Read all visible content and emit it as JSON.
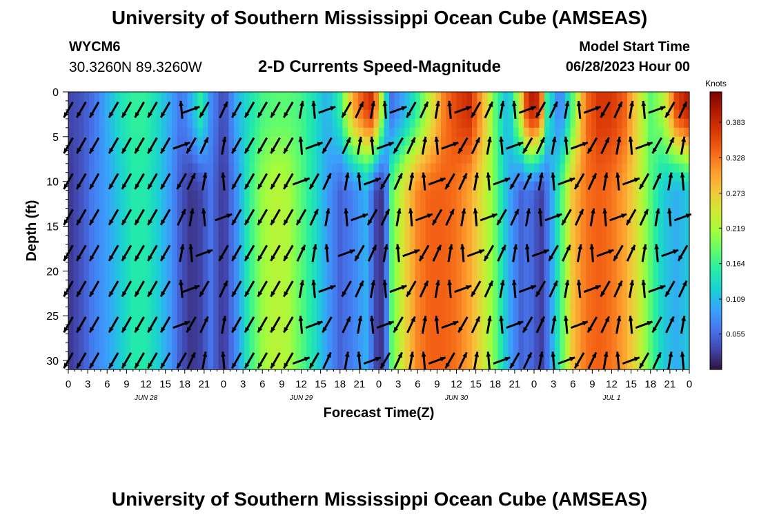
{
  "header": {
    "title": "University of Southern Mississippi Ocean Cube (AMSEAS)",
    "station_id": "WYCM6",
    "coordinates": "30.3260N  89.3260W",
    "chart_title": "2-D Currents Speed-Magnitude",
    "model_start_label": "Model Start Time",
    "model_start_value": "06/28/2023 Hour 00"
  },
  "footer": {
    "title": "University of Southern Mississippi Ocean Cube (AMSEAS)"
  },
  "chart_data": {
    "type": "heatmap",
    "title": "2-D Currents Speed-Magnitude",
    "xlabel": "Forecast Time(Z)",
    "ylabel": "Depth (ft)",
    "x_range_hours": [
      0,
      96
    ],
    "x_tick_step_hours": 3,
    "x_tick_labels": [
      "0",
      "3",
      "6",
      "9",
      "12",
      "15",
      "18",
      "21",
      "0",
      "3",
      "6",
      "9",
      "12",
      "15",
      "18",
      "21",
      "0",
      "3",
      "6",
      "9",
      "12",
      "15",
      "18",
      "21",
      "0",
      "3",
      "6",
      "9",
      "12",
      "15",
      "18",
      "21",
      "0"
    ],
    "date_labels": [
      {
        "label": "JUN 28",
        "hour": 12
      },
      {
        "label": "JUN 29",
        "hour": 36
      },
      {
        "label": "JUN 30",
        "hour": 60
      },
      {
        "label": "JUL 1",
        "hour": 84
      }
    ],
    "y_range_ft": [
      0,
      31
    ],
    "y_ticks": [
      0,
      5,
      10,
      15,
      20,
      25,
      30
    ],
    "colorbar": {
      "unit_label": "Knots",
      "min": 0.0,
      "max": 0.43,
      "ticks": [
        "0.383",
        "0.328",
        "0.273",
        "0.219",
        "0.164",
        "0.109",
        "0.055"
      ],
      "tick_values": [
        0.383,
        0.328,
        0.273,
        0.219,
        0.164,
        0.109,
        0.055
      ],
      "colors": [
        "#30123b",
        "#4145ab",
        "#4675ed",
        "#39a2fc",
        "#1bcfd4",
        "#24eca6",
        "#61fc6c",
        "#a4fc3b",
        "#d1e834",
        "#f3c63a",
        "#fe9b2d",
        "#f36315",
        "#d93806",
        "#b11901",
        "#7a0402"
      ]
    },
    "speed_profile": {
      "hours": [
        0,
        2,
        4,
        6,
        8,
        10,
        12,
        14,
        16,
        17.5,
        19,
        20.5,
        22,
        24,
        26,
        28,
        30,
        32,
        34,
        36,
        38,
        40,
        42,
        44,
        46,
        47,
        48,
        49,
        50,
        52,
        54,
        56,
        58,
        60,
        62,
        64,
        66,
        68,
        70,
        71,
        72,
        73,
        74,
        76,
        78,
        80,
        82,
        84,
        86,
        88,
        90,
        92,
        94,
        96
      ],
      "surface": [
        0.03,
        0.04,
        0.06,
        0.1,
        0.14,
        0.16,
        0.16,
        0.13,
        0.09,
        0.06,
        0.1,
        0.16,
        0.08,
        0.03,
        0.1,
        0.14,
        0.17,
        0.18,
        0.18,
        0.17,
        0.14,
        0.1,
        0.16,
        0.3,
        0.36,
        0.38,
        0.28,
        0.14,
        0.06,
        0.1,
        0.16,
        0.24,
        0.32,
        0.36,
        0.38,
        0.3,
        0.18,
        0.1,
        0.26,
        0.38,
        0.4,
        0.36,
        0.16,
        0.06,
        0.18,
        0.33,
        0.37,
        0.37,
        0.34,
        0.26,
        0.18,
        0.22,
        0.36,
        0.4
      ],
      "deep": [
        0.02,
        0.04,
        0.07,
        0.09,
        0.12,
        0.15,
        0.15,
        0.12,
        0.08,
        0.04,
        0.02,
        0.03,
        0.06,
        0.02,
        0.08,
        0.16,
        0.21,
        0.23,
        0.22,
        0.18,
        0.14,
        0.09,
        0.05,
        0.07,
        0.1,
        0.06,
        0.01,
        0.04,
        0.18,
        0.26,
        0.32,
        0.34,
        0.34,
        0.33,
        0.3,
        0.25,
        0.19,
        0.1,
        0.05,
        0.06,
        0.05,
        0.02,
        0.06,
        0.16,
        0.28,
        0.33,
        0.34,
        0.33,
        0.3,
        0.25,
        0.18,
        0.12,
        0.1,
        0.12
      ]
    },
    "vectors": {
      "column_hours": [
        0,
        2,
        4,
        7,
        9,
        11,
        13,
        15,
        17.5,
        19,
        21,
        24,
        26,
        28,
        30,
        32,
        34,
        36,
        38,
        40,
        43,
        45,
        47,
        49,
        51,
        53,
        55,
        57,
        59,
        61,
        63,
        65,
        67,
        69,
        71,
        73,
        75,
        77,
        79,
        81,
        83,
        85,
        87,
        89,
        91,
        93,
        95
      ],
      "row_depths_ft": [
        2,
        6,
        10,
        14,
        18,
        22,
        26,
        30
      ],
      "representative_angles_deg": [
        240,
        65,
        80,
        95,
        20
      ]
    }
  }
}
